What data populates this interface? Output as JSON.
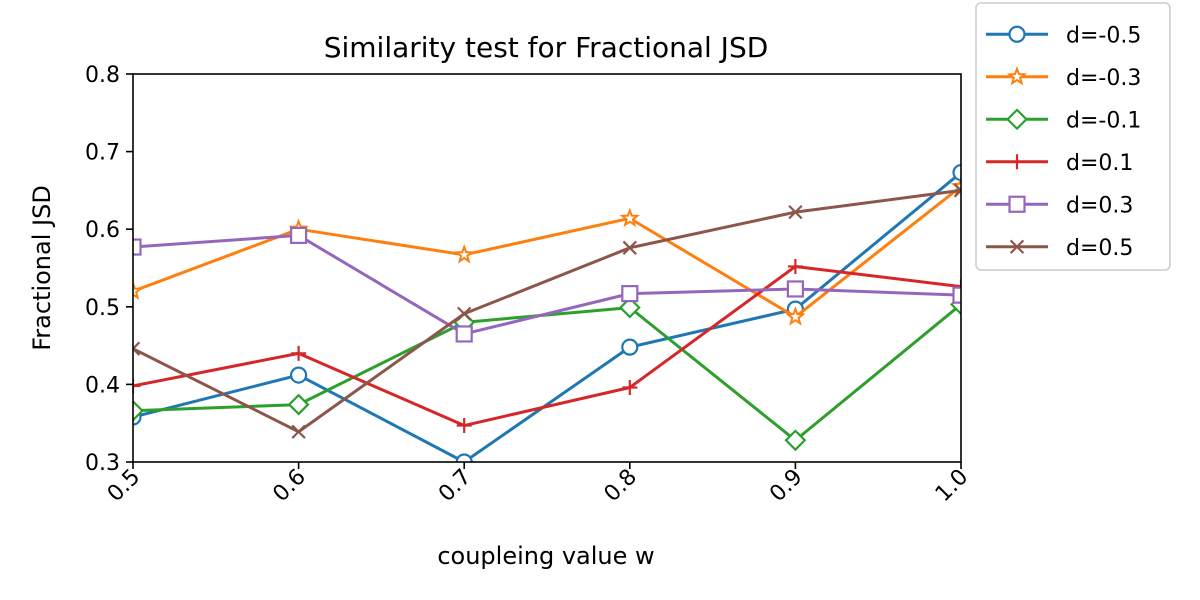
{
  "chart_data": {
    "type": "line",
    "title": "Similarity test for Fractional JSD",
    "xlabel": "coupleing value w",
    "ylabel": "Fractional JSD",
    "xlim": [
      0.5,
      1.0
    ],
    "ylim": [
      0.3,
      0.8
    ],
    "x": [
      0.5,
      0.6,
      0.7,
      0.8,
      0.9,
      1.0
    ],
    "x_tick_labels": [
      "0.5",
      "0.6",
      "0.7",
      "0.8",
      "0.9",
      "1.0"
    ],
    "y_ticks": [
      0.3,
      0.4,
      0.5,
      0.6,
      0.7,
      0.8
    ],
    "y_tick_labels": [
      "0.3",
      "0.4",
      "0.5",
      "0.6",
      "0.7",
      "0.8"
    ],
    "grid": false,
    "legend_position": "outside-top-right",
    "series": [
      {
        "name": "d=-0.5",
        "color": "#1f77b4",
        "marker": "circle",
        "values": [
          0.358,
          0.412,
          0.3,
          0.448,
          0.497,
          0.673
        ]
      },
      {
        "name": "d=-0.3",
        "color": "#ff7f0e",
        "marker": "star",
        "values": [
          0.52,
          0.6,
          0.567,
          0.614,
          0.487,
          0.655
        ]
      },
      {
        "name": "d=-0.1",
        "color": "#2ca02c",
        "marker": "diamond",
        "values": [
          0.366,
          0.374,
          0.48,
          0.499,
          0.328,
          0.503
        ]
      },
      {
        "name": "d=0.1",
        "color": "#d62728",
        "marker": "plus",
        "values": [
          0.398,
          0.44,
          0.347,
          0.396,
          0.552,
          0.526
        ]
      },
      {
        "name": "d=0.3",
        "color": "#9467bd",
        "marker": "square",
        "values": [
          0.577,
          0.592,
          0.465,
          0.517,
          0.523,
          0.515
        ]
      },
      {
        "name": "d=0.5",
        "color": "#8c564b",
        "marker": "x",
        "values": [
          0.446,
          0.339,
          0.491,
          0.576,
          0.622,
          0.65
        ]
      }
    ]
  }
}
